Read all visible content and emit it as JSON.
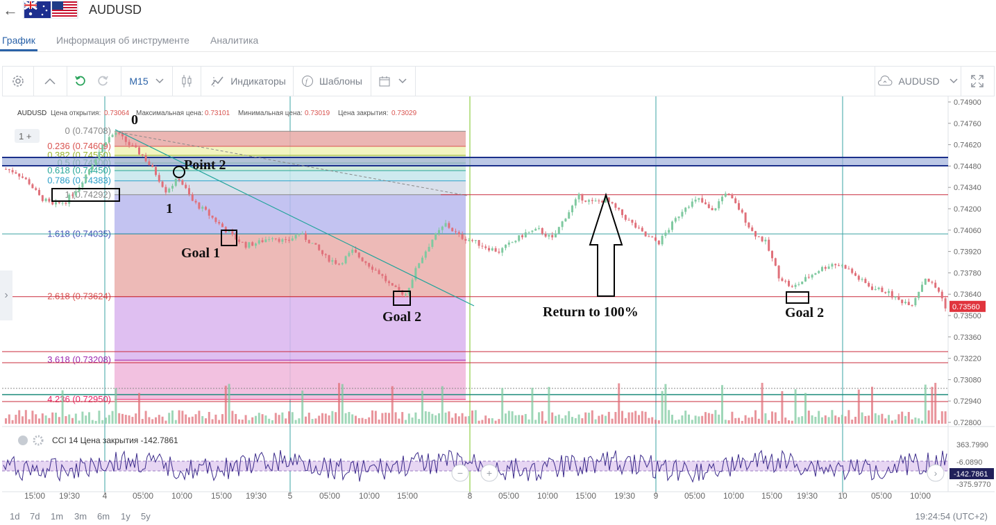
{
  "header": {
    "symbol": "AUDUSD",
    "back_icon": "arrow-left-icon",
    "flag_icon": "australia-flag-icon"
  },
  "tabs": [
    {
      "label": "График",
      "active": true
    },
    {
      "label": "Информация об инструменте",
      "active": false
    },
    {
      "label": "Аналитика",
      "active": false
    }
  ],
  "toolbar": {
    "timeframe": "M15",
    "indicators_label": "Индикаторы",
    "templates_label": "Шаблоны",
    "symbol_select": "AUDUSD"
  },
  "legend": {
    "symbol": "AUDUSD",
    "open_label": "Цена открытия:",
    "open_value": "0.73064",
    "high_label": "Максимальная цена:",
    "high_value": "0.73101",
    "low_label": "Минимальная цена:",
    "low_value": "0.73019",
    "close_label": "Цена закрытия:",
    "close_value": "0.73029",
    "layers_badge": "1"
  },
  "price_axis": {
    "ticks": [
      "0.74900",
      "0.74760",
      "0.74620",
      "0.74480",
      "0.74340",
      "0.74200",
      "0.74060",
      "0.73920",
      "0.73780",
      "0.73640",
      "0.73500",
      "0.73360",
      "0.73220",
      "0.73080",
      "0.72940",
      "0.72800"
    ],
    "current_price": "0.73560"
  },
  "fib_levels": [
    {
      "label": "0 (0.74708)",
      "color": "#888888"
    },
    {
      "label": "0.236 (0.74609)",
      "color": "#d9534f"
    },
    {
      "label": "0.382 (0.74550)",
      "color": "#9ab32b"
    },
    {
      "label": "0.5 (0.74500)",
      "color": "#4caf50"
    },
    {
      "label": "0.618 (0.74450)",
      "color": "#26a69a"
    },
    {
      "label": "0.786 (0.74383)",
      "color": "#2b9fc8"
    },
    {
      "label": "1 (0.74292)",
      "color": "#888888"
    },
    {
      "label": "1.618 (0.74035)",
      "color": "#3f4fb5"
    },
    {
      "label": "2.618 (0.73624)",
      "color": "#d9534f"
    },
    {
      "label": "3.618 (0.73208)",
      "color": "#9c27b0"
    },
    {
      "label": "4.236 (0.72950)",
      "color": "#e91e63"
    }
  ],
  "annotations": {
    "zero": "0",
    "one": "1",
    "point2": "Point 2",
    "goal1": "Goal 1",
    "goal2_left": "Goal 2",
    "goal2_right": "Goal 2",
    "return": "Return to 100%"
  },
  "indicator": {
    "name": "CCI 14 Цена закрытия",
    "value": "-142.7861",
    "ticks": [
      "363.7990",
      "-6.0890",
      "-375.9770"
    ]
  },
  "time_axis": [
    "15:00",
    "19:30",
    "4",
    "05:00",
    "10:00",
    "15:00",
    "19:30",
    "5",
    "05:00",
    "10:00",
    "15:00",
    "8",
    "05:00",
    "10:00",
    "15:00",
    "19:30",
    "9",
    "05:00",
    "10:00",
    "15:00",
    "19:30",
    "10",
    "05:00",
    "10:00"
  ],
  "ranges": [
    "1d",
    "7d",
    "1m",
    "3m",
    "6m",
    "1y",
    "5y"
  ],
  "clock": "19:24:54 (UTC+2)",
  "colors": {
    "accent": "#2a62a8",
    "up": "#7fc9a0",
    "down": "#e0707a",
    "current_price_bg": "#e0343d"
  },
  "chart_data": {
    "type": "candlestick",
    "title": "AUDUSD",
    "timeframe": "M15",
    "ylim": [
      0.728,
      0.749
    ],
    "close_path": [
      [
        0,
        0.7446
      ],
      [
        3,
        0.7444
      ],
      [
        7,
        0.7437
      ],
      [
        10,
        0.7428
      ],
      [
        14,
        0.7422
      ],
      [
        18,
        0.7425
      ],
      [
        22,
        0.7435
      ],
      [
        26,
        0.745
      ],
      [
        30,
        0.7465
      ],
      [
        33,
        0.747
      ],
      [
        37,
        0.7462
      ],
      [
        41,
        0.7455
      ],
      [
        45,
        0.7443
      ],
      [
        48,
        0.7432
      ],
      [
        52,
        0.744
      ],
      [
        56,
        0.7425
      ],
      [
        60,
        0.7418
      ],
      [
        64,
        0.741
      ],
      [
        68,
        0.7402
      ],
      [
        72,
        0.7396
      ],
      [
        76,
        0.7398
      ],
      [
        80,
        0.7402
      ],
      [
        84,
        0.7398
      ],
      [
        88,
        0.7404
      ],
      [
        92,
        0.7397
      ],
      [
        96,
        0.7388
      ],
      [
        100,
        0.7384
      ],
      [
        104,
        0.7392
      ],
      [
        108,
        0.7385
      ],
      [
        112,
        0.7378
      ],
      [
        116,
        0.7368
      ],
      [
        120,
        0.7364
      ],
      [
        124,
        0.7385
      ],
      [
        128,
        0.74
      ],
      [
        132,
        0.741
      ],
      [
        136,
        0.7402
      ],
      [
        140,
        0.7399
      ],
      [
        144,
        0.7395
      ],
      [
        148,
        0.7392
      ],
      [
        152,
        0.7398
      ],
      [
        156,
        0.7404
      ],
      [
        160,
        0.7406
      ],
      [
        164,
        0.74
      ],
      [
        168,
        0.7415
      ],
      [
        172,
        0.7428
      ],
      [
        176,
        0.7424
      ],
      [
        180,
        0.7426
      ],
      [
        184,
        0.7418
      ],
      [
        188,
        0.741
      ],
      [
        192,
        0.7402
      ],
      [
        196,
        0.7398
      ],
      [
        200,
        0.741
      ],
      [
        204,
        0.7422
      ],
      [
        208,
        0.7426
      ],
      [
        212,
        0.7418
      ],
      [
        216,
        0.7431
      ],
      [
        220,
        0.742
      ],
      [
        224,
        0.7405
      ],
      [
        228,
        0.7398
      ],
      [
        232,
        0.7376
      ],
      [
        236,
        0.7368
      ],
      [
        240,
        0.7374
      ],
      [
        244,
        0.738
      ],
      [
        248,
        0.7384
      ],
      [
        252,
        0.7382
      ],
      [
        256,
        0.7374
      ],
      [
        260,
        0.7368
      ],
      [
        264,
        0.7366
      ],
      [
        268,
        0.736
      ],
      [
        272,
        0.7358
      ],
      [
        276,
        0.7375
      ],
      [
        280,
        0.7366
      ],
      [
        282,
        0.7356
      ]
    ]
  }
}
